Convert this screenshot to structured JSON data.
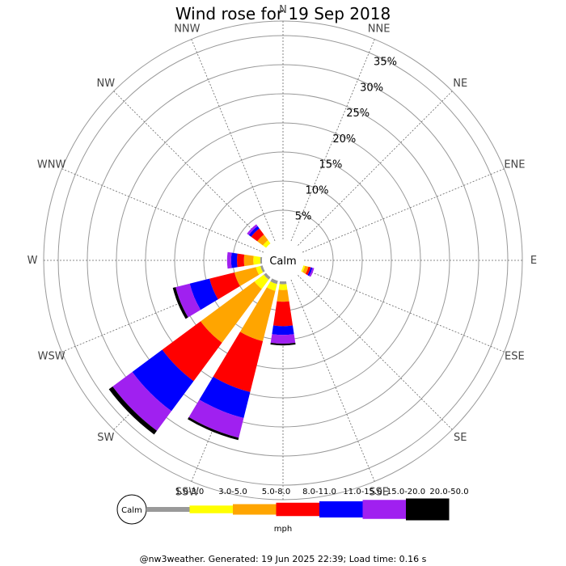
{
  "page": {
    "footer": "@nw3weather. Generated: 19 Jun 2025 22:39; Load time: 0.16 s"
  },
  "chart_data": {
    "type": "wind_rose",
    "title": "Wind rose for 19 Sep 2018",
    "calm_label": "Calm",
    "unit": "mph",
    "radial_labels": [
      "5%",
      "10%",
      "15%",
      "20%",
      "25%",
      "30%",
      "35%"
    ],
    "radial_values": [
      5,
      10,
      15,
      20,
      25,
      30,
      35
    ],
    "directions": [
      "N",
      "NNE",
      "NE",
      "ENE",
      "E",
      "ESE",
      "SE",
      "SSE",
      "S",
      "SSW",
      "SW",
      "WSW",
      "W",
      "WNW",
      "NW",
      "NNW"
    ],
    "bins": [
      {
        "label": "1.0-3.0",
        "color": "#999999"
      },
      {
        "label": "3.0-5.0",
        "color": "#ffff00"
      },
      {
        "label": "5.0-8.0",
        "color": "#ffa500"
      },
      {
        "label": "8.0-11.0",
        "color": "#ff0000"
      },
      {
        "label": "11.0-15.0",
        "color": "#0000ff"
      },
      {
        "label": "15.0-20.0",
        "color": "#a020f0"
      },
      {
        "label": "20.0-50.0",
        "color": "#000000"
      }
    ],
    "percent_by_direction": {
      "N": [
        0.0,
        0.0,
        0.0,
        0.0,
        0.0,
        0.0,
        0.0
      ],
      "NNE": [
        0.0,
        0.0,
        0.0,
        0.0,
        0.0,
        0.0,
        0.0
      ],
      "NE": [
        0.0,
        0.0,
        0.0,
        0.0,
        0.0,
        0.0,
        0.0
      ],
      "ENE": [
        0.0,
        0.0,
        0.0,
        0.0,
        0.0,
        0.0,
        0.0
      ],
      "E": [
        0.0,
        0.0,
        0.0,
        0.0,
        0.0,
        0.0,
        0.0
      ],
      "ESE": [
        0.0,
        0.3,
        0.6,
        0.4,
        0.3,
        0.3,
        0.0
      ],
      "SE": [
        0.0,
        0.0,
        0.0,
        0.0,
        0.0,
        0.0,
        0.0
      ],
      "SSE": [
        0.0,
        0.0,
        0.0,
        0.0,
        0.0,
        0.0,
        0.0
      ],
      "S": [
        0.5,
        1.0,
        2.0,
        4.2,
        1.5,
        1.5,
        0.3
      ],
      "SSW": [
        0.6,
        1.2,
        8.9,
        9.0,
        4.6,
        3.5,
        0.4
      ],
      "SW": [
        0.5,
        2.0,
        11.5,
        8.2,
        6.4,
        4.2,
        0.8
      ],
      "WSW": [
        0.4,
        0.8,
        3.8,
        4.4,
        3.5,
        2.5,
        0.5
      ],
      "W": [
        0.3,
        1.2,
        1.6,
        1.2,
        1.0,
        0.7,
        0.0
      ],
      "WNW": [
        0.0,
        0.0,
        0.0,
        0.0,
        0.0,
        0.0,
        0.0
      ],
      "NW": [
        0.0,
        0.7,
        1.2,
        1.3,
        0.5,
        0.4,
        0.0
      ],
      "NNW": [
        0.0,
        0.0,
        0.0,
        0.0,
        0.0,
        0.0,
        0.0
      ]
    }
  }
}
